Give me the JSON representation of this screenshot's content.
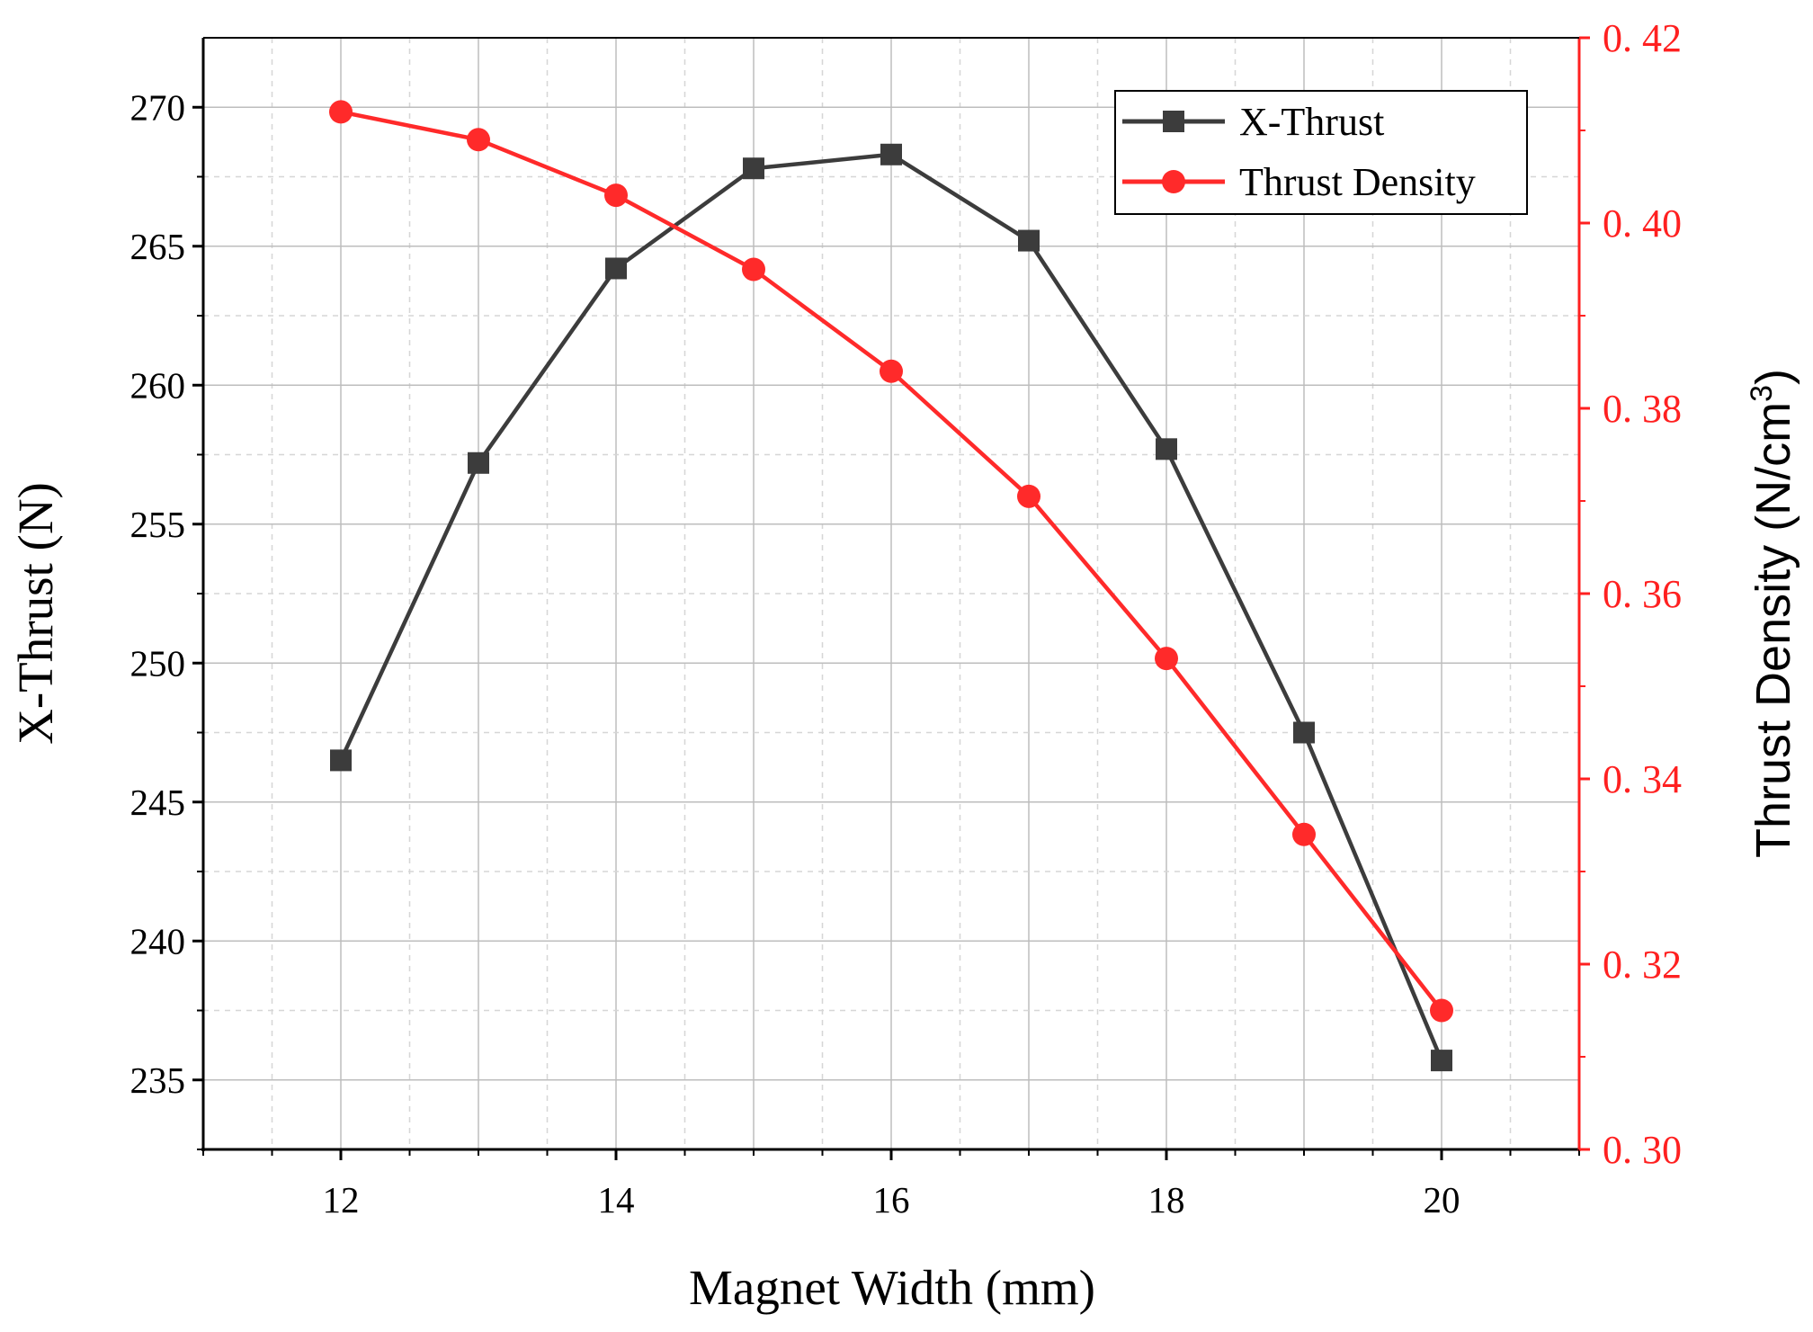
{
  "chart_data": {
    "type": "line",
    "title": "",
    "xlabel": "Magnet Width (mm)",
    "x": [
      12,
      13,
      14,
      15,
      16,
      17,
      18,
      19,
      20
    ],
    "xlim": [
      11,
      21
    ],
    "xticks": [
      "12",
      "14",
      "16",
      "18",
      "20"
    ],
    "ylabel_left": "X-Thrust (N)",
    "ylim_left": [
      232.5,
      272.5
    ],
    "yticks_left": [
      "235",
      "240",
      "245",
      "250",
      "255",
      "260",
      "265",
      "270"
    ],
    "ylabel_right_main": "Thrust Density (N/cm",
    "ylabel_right_sup": "3",
    "ylabel_right_close": ")",
    "ylim_right": [
      0.3,
      0.42
    ],
    "yticks_right": [
      "0. 30",
      "0. 32",
      "0. 34",
      "0. 36",
      "0. 38",
      "0. 40",
      "0. 42"
    ],
    "grid": true,
    "legend_position": "top-right",
    "series": [
      {
        "name": "X-Thrust",
        "axis": "left",
        "marker": "square",
        "color": "#3c3c3c",
        "values": [
          246.5,
          257.2,
          264.2,
          267.8,
          268.3,
          265.2,
          257.7,
          247.5,
          235.7
        ]
      },
      {
        "name": "Thrust Density",
        "axis": "right",
        "marker": "circle",
        "color": "#ff2a2a",
        "values": [
          0.412,
          0.409,
          0.403,
          0.395,
          0.384,
          0.3705,
          0.353,
          0.334,
          0.315
        ]
      }
    ]
  }
}
